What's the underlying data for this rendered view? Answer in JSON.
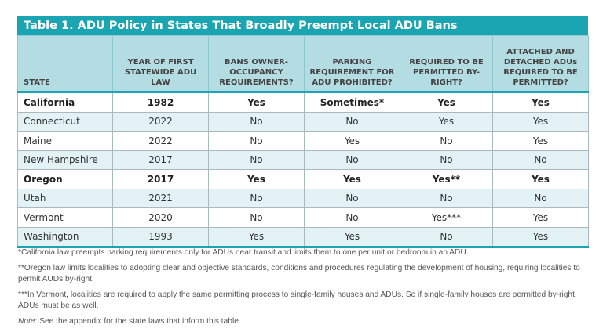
{
  "title": "Table 1. ADU Policy in States That Broadly Preempt Local ADU Bans",
  "columns": [
    "STATE",
    "YEAR OF FIRST STATEWIDE ADU LAW",
    "BANS OWNER-OCCUPANCY REQUIREMENTS?",
    "PARKING REQUIREMENT FOR ADU PROHIBITED?",
    "REQUIRED TO BE PERMITTED BY-RIGHT?",
    "ATTACHED AND DETACHED ADUs REQUIRED TO BE PERMITTED?"
  ],
  "rows": [
    {
      "bold": true,
      "cells": [
        "California",
        "1982",
        "Yes",
        "Sometimes*",
        "Yes",
        "Yes"
      ]
    },
    {
      "bold": false,
      "cells": [
        "Connecticut",
        "2022",
        "No",
        "No",
        "Yes",
        "Yes"
      ]
    },
    {
      "bold": false,
      "cells": [
        "Maine",
        "2022",
        "No",
        "Yes",
        "No",
        "Yes"
      ]
    },
    {
      "bold": false,
      "cells": [
        "New Hampshire",
        "2017",
        "No",
        "No",
        "No",
        "No"
      ]
    },
    {
      "bold": true,
      "cells": [
        "Oregon",
        "2017",
        "Yes",
        "Yes",
        "Yes**",
        "Yes"
      ]
    },
    {
      "bold": false,
      "cells": [
        "Utah",
        "2021",
        "No",
        "No",
        "No",
        "No"
      ]
    },
    {
      "bold": false,
      "cells": [
        "Vermont",
        "2020",
        "No",
        "No",
        "Yes***",
        "Yes"
      ]
    },
    {
      "bold": false,
      "cells": [
        "Washington",
        "1993",
        "Yes",
        "Yes",
        "No",
        "Yes"
      ]
    }
  ],
  "notes": {
    "n1": "*California law preempts parking requirements only for ADUs near transit and limits them to one per unit or bedroom in an ADU.",
    "n2": "**Oregon law limits localities to adopting clear and objective standards, conditions and procedures regulating the development of housing, requiring localities to permit AUDs by-right.",
    "n3": "***In Vermont, localities are required to apply the same permitting process to single-family houses and ADUs. So if single-family houses are permitted by-right, ADUs must be as well.",
    "note_label": "Note",
    "note_text": ": See the appendix for the state laws that inform this table."
  },
  "colors": {
    "title_bar": "#1ba5b3",
    "header_bg": "#b3dde3",
    "alt_row": "#e3f2f5"
  }
}
